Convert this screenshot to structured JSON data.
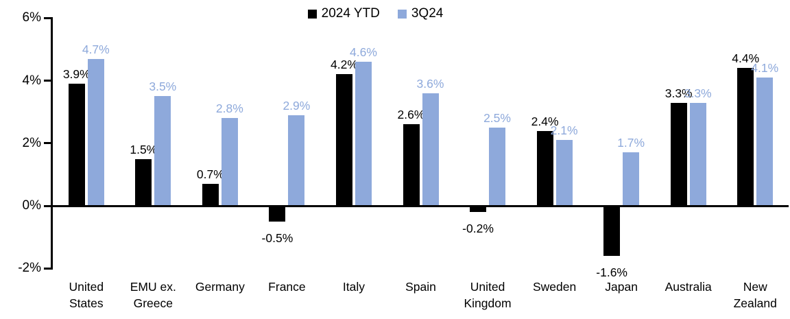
{
  "chart_data": {
    "type": "bar",
    "title": "",
    "categories": [
      "United\nStates",
      "EMU ex.\nGreece",
      "Germany",
      "France",
      "Italy",
      "Spain",
      "United\nKingdom",
      "Sweden",
      "Japan",
      "Australia",
      "New\nZealand"
    ],
    "series": [
      {
        "name": "2024 YTD",
        "color": "#000000",
        "values": [
          3.9,
          1.5,
          0.7,
          -0.5,
          4.2,
          2.6,
          -0.2,
          2.4,
          -1.6,
          3.3,
          4.4
        ],
        "labels": [
          "3.9%",
          "1.5%",
          "0.7%",
          "-0.5%",
          "4.2%",
          "2.6%",
          "-0.2%",
          "2.4%",
          "-1.6%",
          "3.3%",
          "4.4%"
        ]
      },
      {
        "name": "3Q24",
        "color": "#8EA9DB",
        "values": [
          4.7,
          3.5,
          2.8,
          2.9,
          4.6,
          3.6,
          2.5,
          2.1,
          1.7,
          3.3,
          4.1
        ],
        "labels": [
          "4.7%",
          "3.5%",
          "2.8%",
          "2.9%",
          "4.6%",
          "3.6%",
          "2.5%",
          "2.1%",
          "1.7%",
          "3.3%",
          "4.1%"
        ]
      }
    ],
    "y_axis": {
      "min": -2,
      "max": 6,
      "ticks": [
        {
          "value": 6,
          "label": "6%"
        },
        {
          "value": 4,
          "label": "4%"
        },
        {
          "value": 2,
          "label": "2%"
        },
        {
          "value": 0,
          "label": "0%"
        },
        {
          "value": -2,
          "label": "-2%"
        }
      ]
    },
    "legend": {
      "position": "top-center"
    },
    "grid": false,
    "axis_color": "#000000",
    "unit": "%"
  }
}
